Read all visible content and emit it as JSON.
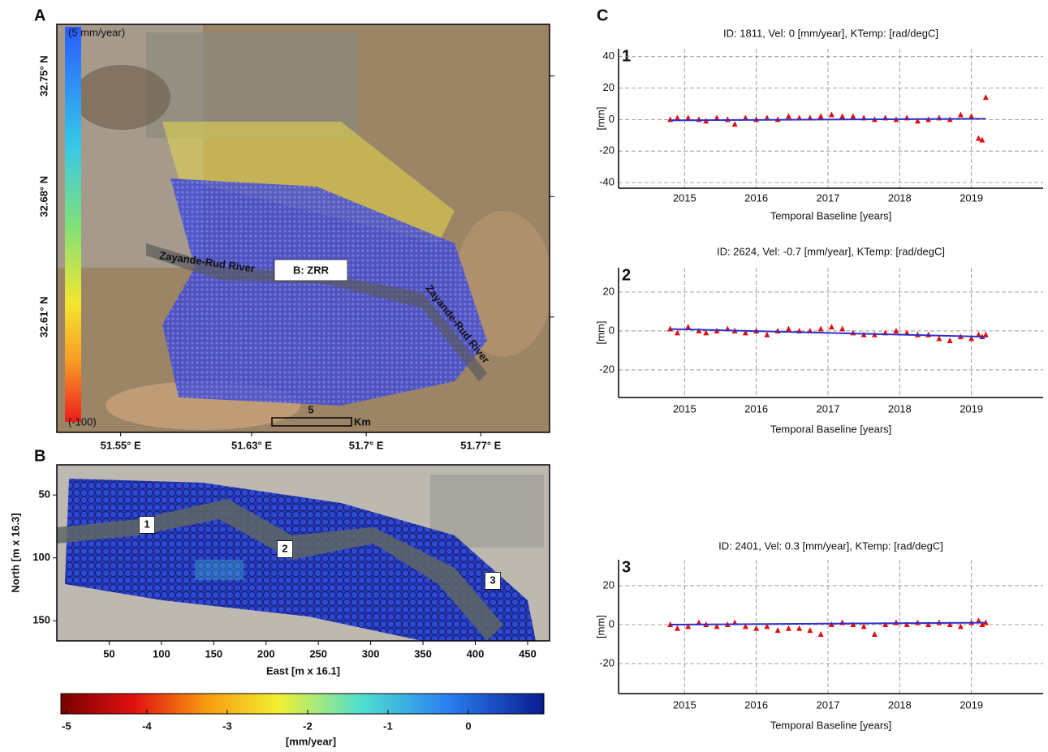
{
  "chart_data": [
    {
      "type": "map",
      "panel": "A",
      "xlim": [
        51.511,
        51.812
      ],
      "xticks": [
        {
          "value": 51.55,
          "label": "51.55° E"
        },
        {
          "value": 51.63,
          "label": "51.63° E"
        },
        {
          "value": 51.7,
          "label": "51.7° E"
        },
        {
          "value": 51.77,
          "label": "51.77° E"
        }
      ],
      "ylim": [
        32.543,
        32.78
      ],
      "yticks": [
        {
          "value": 32.75,
          "label": "32.75° N"
        },
        {
          "value": 32.68,
          "label": "32.68° N"
        },
        {
          "value": 32.61,
          "label": "32.61° N"
        }
      ],
      "colorbar_labels": [
        "(5 mm/year)",
        "(-100)"
      ],
      "annotations": [
        "B: ZRR",
        "Zayande-Rud River",
        "Zayande-Rud River"
      ],
      "scale_bar": {
        "value": "5",
        "unit": "Km"
      }
    },
    {
      "type": "map",
      "panel": "B",
      "xlabel": "East [m x 16.1]",
      "ylabel": "North [m x 16.3]",
      "xlim": [
        0,
        471
      ],
      "xticks": [
        50,
        100,
        150,
        200,
        250,
        300,
        350,
        400,
        450
      ],
      "ylim": [
        166,
        26
      ],
      "yticks": [
        50,
        100,
        150
      ],
      "annotations": [
        "1",
        "2",
        "3"
      ],
      "colorbar": {
        "label": "[mm/year]",
        "clim": [
          -5.07,
          0.94
        ],
        "ticks": [
          -5,
          -4,
          -3,
          -2,
          -1,
          0
        ]
      }
    },
    {
      "type": "scatter",
      "panel": "C",
      "panel_number": "1",
      "title": "ID: 1811, Vel: 0 [mm/year], KTemp:  [rad/degC]",
      "xlabel": "Temporal Baseline [years]",
      "ylabel": "[mm]",
      "xlim": [
        2014.08,
        2020
      ],
      "xticks": [
        2015,
        2016,
        2017,
        2018,
        2019
      ],
      "ylim": [
        -43.6,
        45
      ],
      "yticks": [
        40,
        20,
        0,
        -20,
        -40
      ],
      "grid": true,
      "series": [
        {
          "color": "#e01010",
          "marker": "triangle",
          "x": [
            2014.8,
            2014.9,
            2015.05,
            2015.2,
            2015.3,
            2015.45,
            2015.6,
            2015.7,
            2015.85,
            2016.0,
            2016.15,
            2016.3,
            2016.45,
            2016.6,
            2016.75,
            2016.9,
            2017.05,
            2017.2,
            2017.35,
            2017.5,
            2017.65,
            2017.8,
            2017.95,
            2018.1,
            2018.25,
            2018.4,
            2018.55,
            2018.7,
            2018.85,
            2019.0,
            2019.1,
            2019.15,
            2019.2
          ],
          "values": [
            0,
            1,
            1,
            0,
            -1,
            1,
            0,
            -3,
            1,
            0,
            1,
            0,
            2,
            1,
            1,
            2,
            3,
            2,
            2,
            1,
            0,
            1,
            0,
            1,
            -1,
            0,
            1,
            0,
            3,
            2,
            -12,
            -13,
            14
          ]
        },
        {
          "color": "#3030c8",
          "x": [
            2014.8,
            2019.2
          ],
          "values": [
            -0.5,
            0.5
          ]
        }
      ]
    },
    {
      "type": "scatter",
      "panel_number": "2",
      "title": "ID: 2624, Vel: -0.7 [mm/year], KTemp:  [rad/degC]",
      "xlabel": "Temporal Baseline [years]",
      "ylabel": "[mm]",
      "xlim": [
        2014.08,
        2020
      ],
      "xticks": [
        2015,
        2016,
        2017,
        2018,
        2019
      ],
      "ylim": [
        -34.2,
        32.5
      ],
      "yticks": [
        20,
        0,
        -20
      ],
      "grid": true,
      "series": [
        {
          "color": "#e01010",
          "marker": "triangle",
          "x": [
            2014.8,
            2014.9,
            2015.05,
            2015.2,
            2015.3,
            2015.45,
            2015.6,
            2015.7,
            2015.85,
            2016.0,
            2016.15,
            2016.3,
            2016.45,
            2016.6,
            2016.75,
            2016.9,
            2017.05,
            2017.2,
            2017.35,
            2017.5,
            2017.65,
            2017.8,
            2017.95,
            2018.1,
            2018.25,
            2018.4,
            2018.55,
            2018.7,
            2018.85,
            2019.0,
            2019.1,
            2019.15,
            2019.2
          ],
          "values": [
            1,
            -1,
            2,
            0,
            -1,
            0,
            1,
            0,
            -1,
            0,
            -2,
            0,
            1,
            0,
            0,
            1,
            2,
            1,
            -1,
            -2,
            -2,
            -1,
            0,
            -1,
            -2,
            -2,
            -4,
            -5,
            -3,
            -4,
            -2,
            -3,
            -2
          ]
        },
        {
          "color": "#3030c8",
          "x": [
            2014.8,
            2019.2
          ],
          "values": [
            1,
            -3
          ]
        }
      ]
    },
    {
      "type": "scatter",
      "panel_number": "3",
      "title": "ID: 2401, Vel: 0.3 [mm/year], KTemp:  [rad/degC]",
      "xlabel": "Temporal Baseline [years]",
      "ylabel": "[mm]",
      "xlim": [
        2014.08,
        2020
      ],
      "xticks": [
        2015,
        2016,
        2017,
        2018,
        2019
      ],
      "ylim": [
        -35.4,
        33.3
      ],
      "yticks": [
        20,
        0,
        -20
      ],
      "grid": true,
      "series": [
        {
          "color": "#e01010",
          "marker": "triangle",
          "x": [
            2014.8,
            2014.9,
            2015.05,
            2015.2,
            2015.3,
            2015.45,
            2015.6,
            2015.7,
            2015.85,
            2016.0,
            2016.15,
            2016.3,
            2016.45,
            2016.6,
            2016.75,
            2016.9,
            2017.05,
            2017.2,
            2017.35,
            2017.5,
            2017.65,
            2017.8,
            2017.95,
            2018.1,
            2018.25,
            2018.4,
            2018.55,
            2018.7,
            2018.85,
            2019.0,
            2019.1,
            2019.15,
            2019.2
          ],
          "values": [
            0,
            -2,
            -1,
            1,
            0,
            -1,
            0,
            1,
            -1,
            -2,
            -1,
            -3,
            -2,
            -2,
            -3,
            -5,
            0,
            1,
            0,
            -1,
            -5,
            0,
            1,
            0,
            1,
            0,
            1,
            0,
            -1,
            1,
            2,
            0,
            1
          ]
        },
        {
          "color": "#3030c8",
          "x": [
            2014.8,
            2019.2
          ],
          "values": [
            0,
            1
          ]
        }
      ]
    }
  ]
}
